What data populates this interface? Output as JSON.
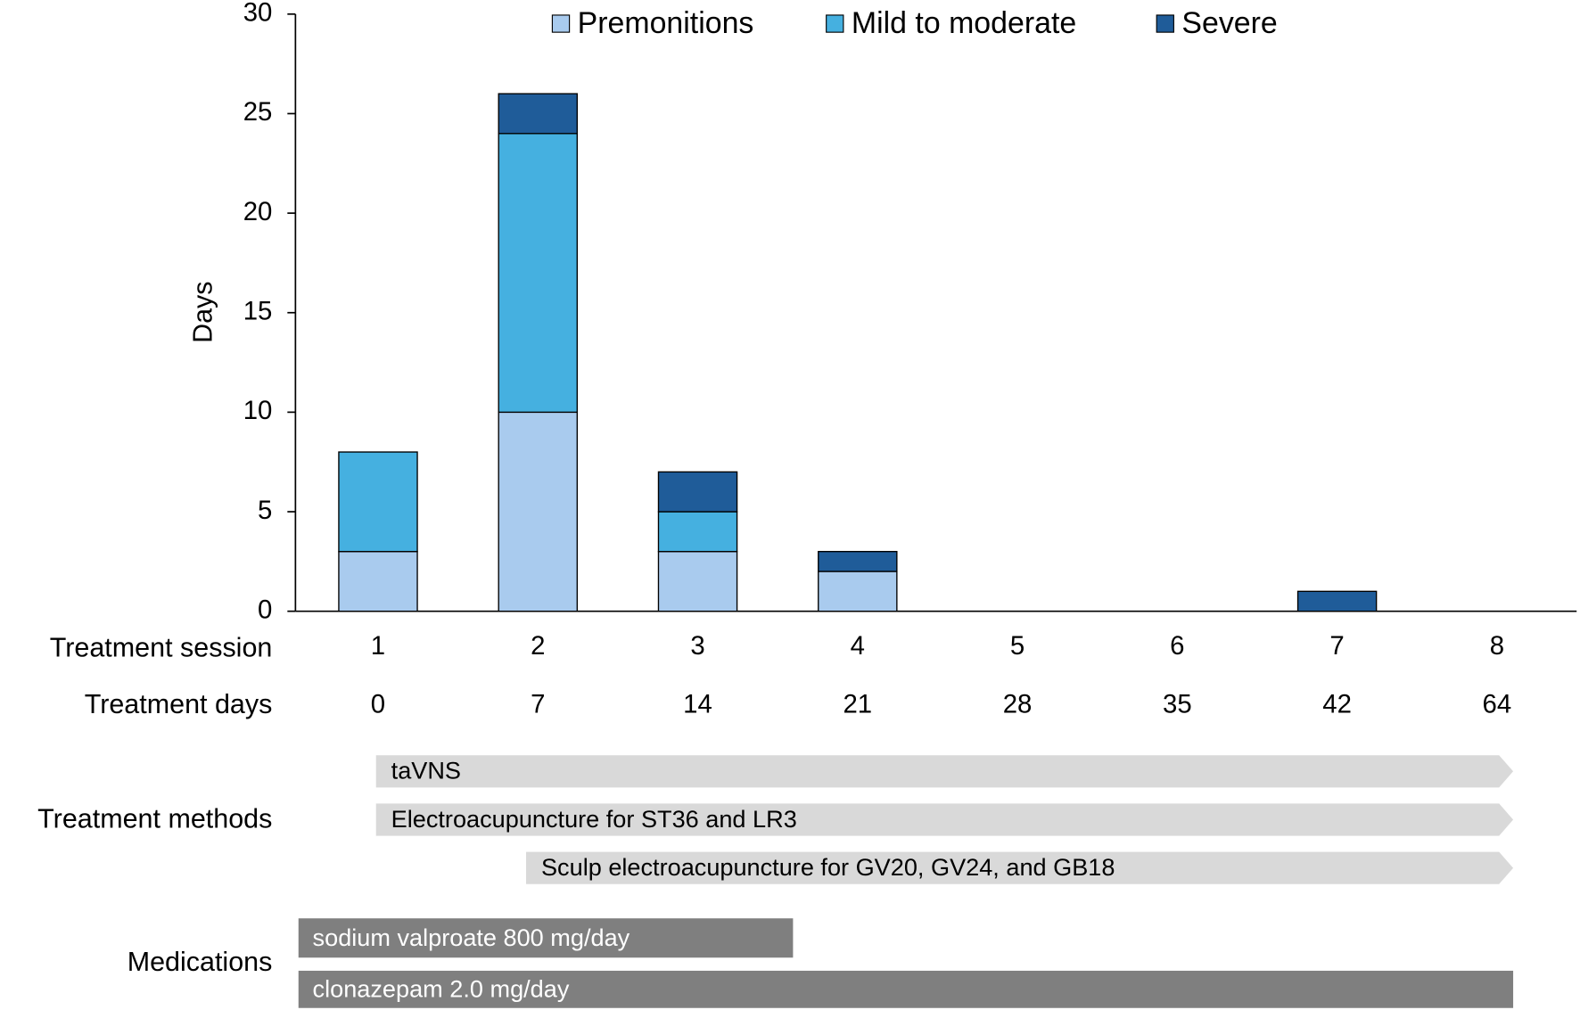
{
  "chart_data": {
    "type": "stacked_bar",
    "ylabel": "Days",
    "session_label": "Treatment session",
    "days_label": "Treatment days",
    "categories": [
      1,
      2,
      3,
      4,
      5,
      6,
      7,
      8
    ],
    "treatment_days": [
      0,
      7,
      14,
      21,
      28,
      35,
      42,
      64
    ],
    "series": [
      {
        "name": "Premonitions",
        "color": "#a9cbee",
        "values": [
          3,
          10,
          3,
          2,
          0,
          0,
          0,
          0
        ]
      },
      {
        "name": "Mild to moderate",
        "color": "#45b0e0",
        "values": [
          5,
          14,
          2,
          0,
          0,
          0,
          0,
          0
        ]
      },
      {
        "name": "Severe",
        "color": "#1f5c99",
        "values": [
          0,
          2,
          2,
          1,
          0,
          0,
          1,
          0
        ]
      }
    ],
    "ylim": [
      0,
      30
    ],
    "yticks": [
      0,
      5,
      10,
      15,
      20,
      25,
      30
    ],
    "legend": "top"
  },
  "timeline": {
    "methods_label": "Treatment methods",
    "methods": [
      "taVNS",
      "Electroacupuncture for ST36 and LR3",
      "Sculp electroacupuncture for GV20, GV24, and GB18"
    ],
    "medications_label": "Medications",
    "medications": [
      "sodium valproate 800 mg/day",
      "clonazepam 2.0 mg/day"
    ]
  }
}
